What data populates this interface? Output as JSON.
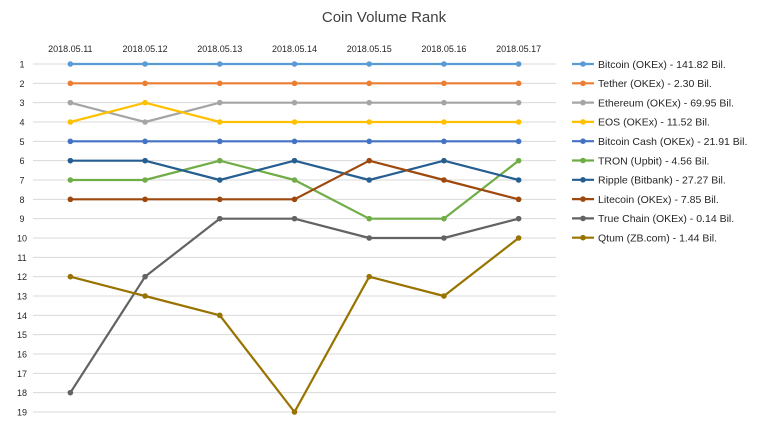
{
  "chart_data": {
    "type": "line",
    "title": "Coin Volume Rank",
    "x": [
      "2018.05.11",
      "2018.05.12",
      "2018.05.13",
      "2018.05.14",
      "2018.05.15",
      "2018.05.16",
      "2018.05.17"
    ],
    "y_ticks": [
      "1",
      "2",
      "3",
      "4",
      "5",
      "6",
      "7",
      "8",
      "9",
      "10",
      "11",
      "12",
      "13",
      "14",
      "15",
      "16",
      "17",
      "18",
      "19"
    ],
    "ylim": [
      1,
      19
    ],
    "y_inverted": true,
    "x_axis_position": "top",
    "grid": true,
    "legend_position": "right",
    "series": [
      {
        "name": "Bitcoin (OKEx) - 141.82 Bil.",
        "color": "#5b9bd5",
        "values": [
          1,
          1,
          1,
          1,
          1,
          1,
          1
        ]
      },
      {
        "name": "Tether (OKEx) - 2.30 Bil.",
        "color": "#ed7d31",
        "values": [
          2,
          2,
          2,
          2,
          2,
          2,
          2
        ]
      },
      {
        "name": "Ethereum (OKEx) - 69.95 Bil.",
        "color": "#a5a5a5",
        "values": [
          3,
          4,
          3,
          3,
          3,
          3,
          3
        ]
      },
      {
        "name": "EOS (OKEx) - 11.52 Bil.",
        "color": "#ffc000",
        "values": [
          4,
          3,
          4,
          4,
          4,
          4,
          4
        ]
      },
      {
        "name": "Bitcoin Cash (OKEx) - 21.91 Bil.",
        "color": "#4472c4",
        "values": [
          5,
          5,
          5,
          5,
          5,
          5,
          5
        ]
      },
      {
        "name": "TRON (Upbit) - 4.56 Bil.",
        "color": "#70ad47",
        "values": [
          7,
          7,
          6,
          7,
          9,
          9,
          6
        ]
      },
      {
        "name": "Ripple (Bitbank) - 27.27 Bil.",
        "color": "#255e91",
        "values": [
          6,
          6,
          7,
          6,
          7,
          6,
          7
        ]
      },
      {
        "name": "Litecoin (OKEx) - 7.85 Bil.",
        "color": "#9e480e",
        "values": [
          8,
          8,
          8,
          8,
          6,
          7,
          8
        ]
      },
      {
        "name": "True Chain (OKEx) - 0.14 Bil.",
        "color": "#636363",
        "values": [
          18,
          12,
          9,
          9,
          10,
          10,
          9
        ]
      },
      {
        "name": "Qtum (ZB.com) - 1.44 Bil.",
        "color": "#997300",
        "values": [
          12,
          13,
          14,
          19,
          12,
          13,
          10
        ]
      }
    ]
  }
}
